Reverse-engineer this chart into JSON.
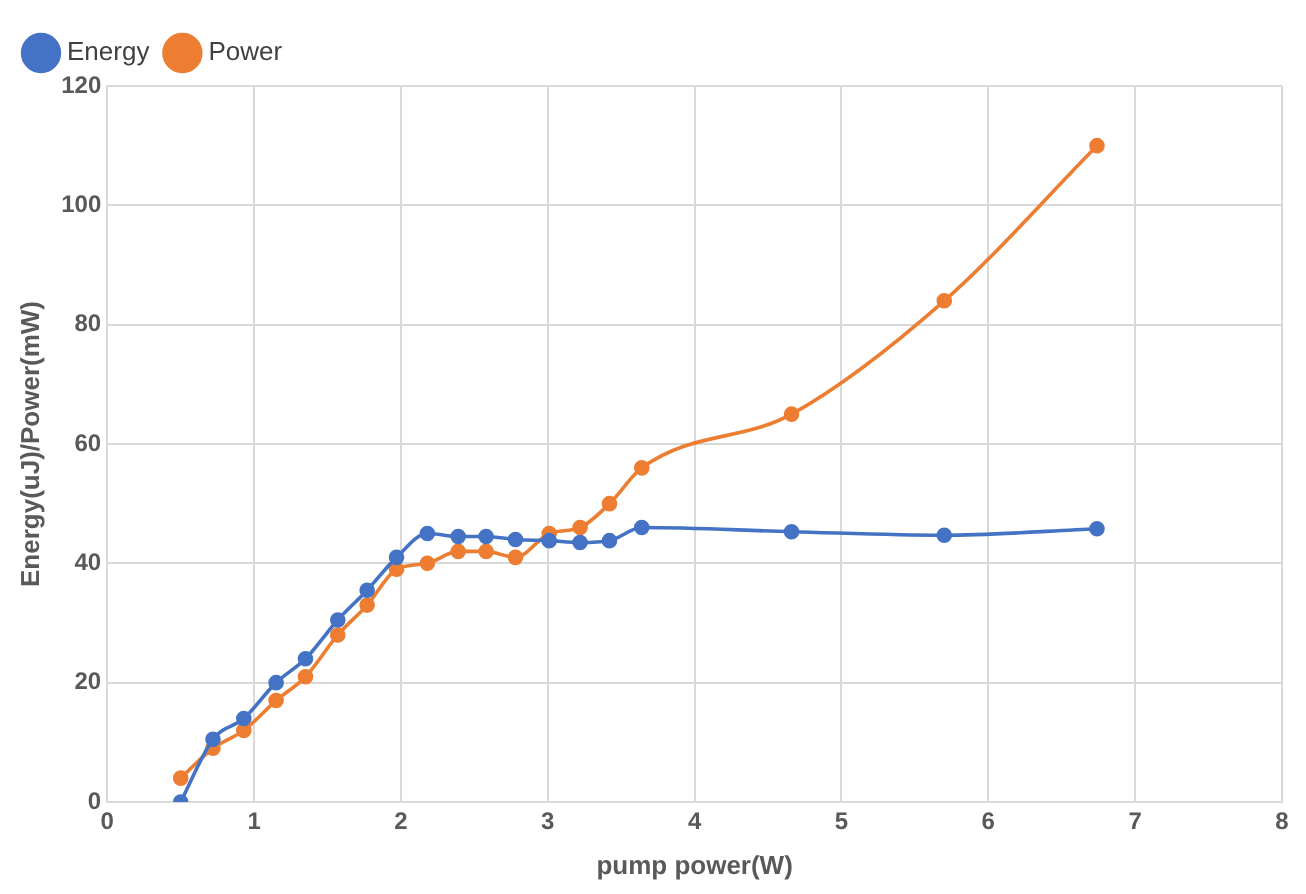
{
  "chart_data": {
    "type": "line",
    "xlabel": "pump power(W)",
    "ylabel": "Energy(uJ)/Power(mW)",
    "x": [
      0.5,
      0.72,
      0.93,
      1.15,
      1.35,
      1.57,
      1.77,
      1.97,
      2.18,
      2.39,
      2.58,
      2.78,
      3.01,
      3.22,
      3.42,
      3.64,
      4.66,
      5.7,
      6.74
    ],
    "series": [
      {
        "name": "Energy",
        "color": "#4472c4",
        "values": [
          0,
          10.5,
          14,
          20,
          24,
          30.5,
          35.5,
          41,
          45,
          44.5,
          44.5,
          44,
          43.8,
          43.5,
          43.8,
          46,
          45.3,
          44.7,
          45.8
        ]
      },
      {
        "name": "Power",
        "color": "#ed7d31",
        "values": [
          4,
          9,
          12,
          17,
          21,
          28,
          33,
          39,
          40,
          42,
          42,
          41,
          45,
          46,
          50,
          56,
          65,
          84,
          110
        ]
      }
    ],
    "xlim": [
      0,
      8
    ],
    "xticks": [
      0,
      1,
      2,
      3,
      4,
      5,
      6,
      7,
      8
    ],
    "ylim": [
      0,
      120
    ],
    "yticks": [
      0,
      20,
      40,
      60,
      80,
      100,
      120
    ],
    "grid": true,
    "legend": "top left",
    "marker": "circle",
    "line_style": "solid"
  }
}
